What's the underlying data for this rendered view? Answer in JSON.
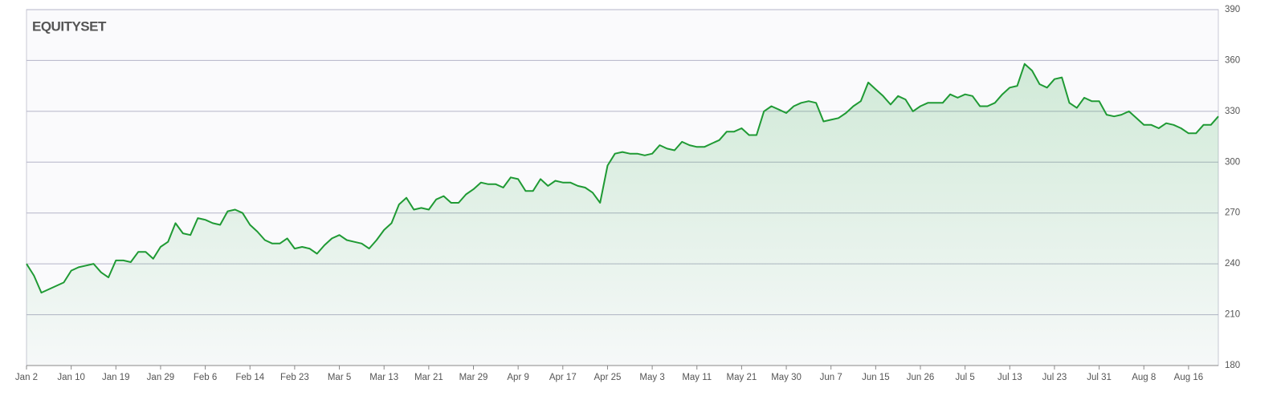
{
  "chart_data": {
    "type": "area",
    "logo": "EQUITYSET",
    "categories": [
      "Jan 2",
      null,
      null,
      null,
      null,
      null,
      "Jan 10",
      null,
      null,
      null,
      null,
      null,
      "Jan 19",
      null,
      null,
      null,
      null,
      null,
      "Jan 29",
      null,
      null,
      null,
      null,
      null,
      "Feb 6",
      null,
      null,
      null,
      null,
      null,
      "Feb 14",
      null,
      null,
      null,
      null,
      null,
      "Feb 23",
      null,
      null,
      null,
      null,
      null,
      "Mar 5",
      null,
      null,
      null,
      null,
      null,
      "Mar 13",
      null,
      null,
      null,
      null,
      null,
      "Mar 21",
      null,
      null,
      null,
      null,
      null,
      "Mar 29",
      null,
      null,
      null,
      null,
      null,
      "Apr 9",
      null,
      null,
      null,
      null,
      null,
      "Apr 17",
      null,
      null,
      null,
      null,
      null,
      "Apr 25",
      null,
      null,
      null,
      null,
      null,
      "May 3",
      null,
      null,
      null,
      null,
      null,
      "May 11",
      null,
      null,
      null,
      null,
      null,
      "May 21",
      null,
      null,
      null,
      null,
      null,
      "May 30",
      null,
      null,
      null,
      null,
      null,
      "Jun 7",
      null,
      null,
      null,
      null,
      null,
      "Jun 15",
      null,
      null,
      null,
      null,
      null,
      "Jun 26",
      null,
      null,
      null,
      null,
      null,
      "Jul 5",
      null,
      null,
      null,
      null,
      null,
      "Jul 13",
      null,
      null,
      null,
      null,
      null,
      "Jul 23",
      null,
      null,
      null,
      null,
      null,
      "Jul 31",
      null,
      null,
      null,
      null,
      null,
      "Aug 8",
      null,
      null,
      null,
      null,
      null,
      "Aug 16",
      null,
      null,
      null,
      null
    ],
    "series": [
      {
        "color": "#1f9a34",
        "values": [
          240,
          233,
          223,
          225,
          227,
          229,
          236,
          238,
          239,
          240,
          235,
          232,
          242,
          242,
          241,
          247,
          247,
          243,
          250,
          253,
          264,
          258,
          257,
          267,
          266,
          264,
          263,
          271,
          272,
          270,
          263,
          259,
          254,
          252,
          252,
          255,
          249,
          250,
          249,
          246,
          251,
          255,
          257,
          254,
          253,
          252,
          249,
          254,
          260,
          264,
          275,
          279,
          272,
          273,
          272,
          278,
          280,
          276,
          276,
          281,
          284,
          288,
          287,
          287,
          285,
          291,
          290,
          283,
          283,
          290,
          286,
          289,
          288,
          288,
          286,
          285,
          282,
          276,
          298,
          305,
          306,
          305,
          305,
          304,
          305,
          310,
          308,
          307,
          312,
          310,
          309,
          309,
          311,
          313,
          318,
          318,
          320,
          316,
          316,
          330,
          333,
          331,
          329,
          333,
          335,
          336,
          335,
          324,
          325,
          326,
          329,
          333,
          336,
          347,
          343,
          339,
          334,
          339,
          337,
          330,
          333,
          335,
          335,
          335,
          340,
          338,
          340,
          339,
          333,
          333,
          335,
          340,
          344,
          345,
          358,
          354,
          346,
          344,
          349,
          350,
          335,
          332,
          338,
          336,
          336,
          328,
          327,
          328,
          330,
          326,
          322,
          322,
          320,
          323,
          322,
          320,
          317,
          317,
          322,
          322,
          327
        ]
      }
    ],
    "ylim": [
      180,
      390
    ],
    "yticks": [
      180,
      210,
      240,
      270,
      300,
      330,
      360,
      390
    ],
    "grid": true
  }
}
